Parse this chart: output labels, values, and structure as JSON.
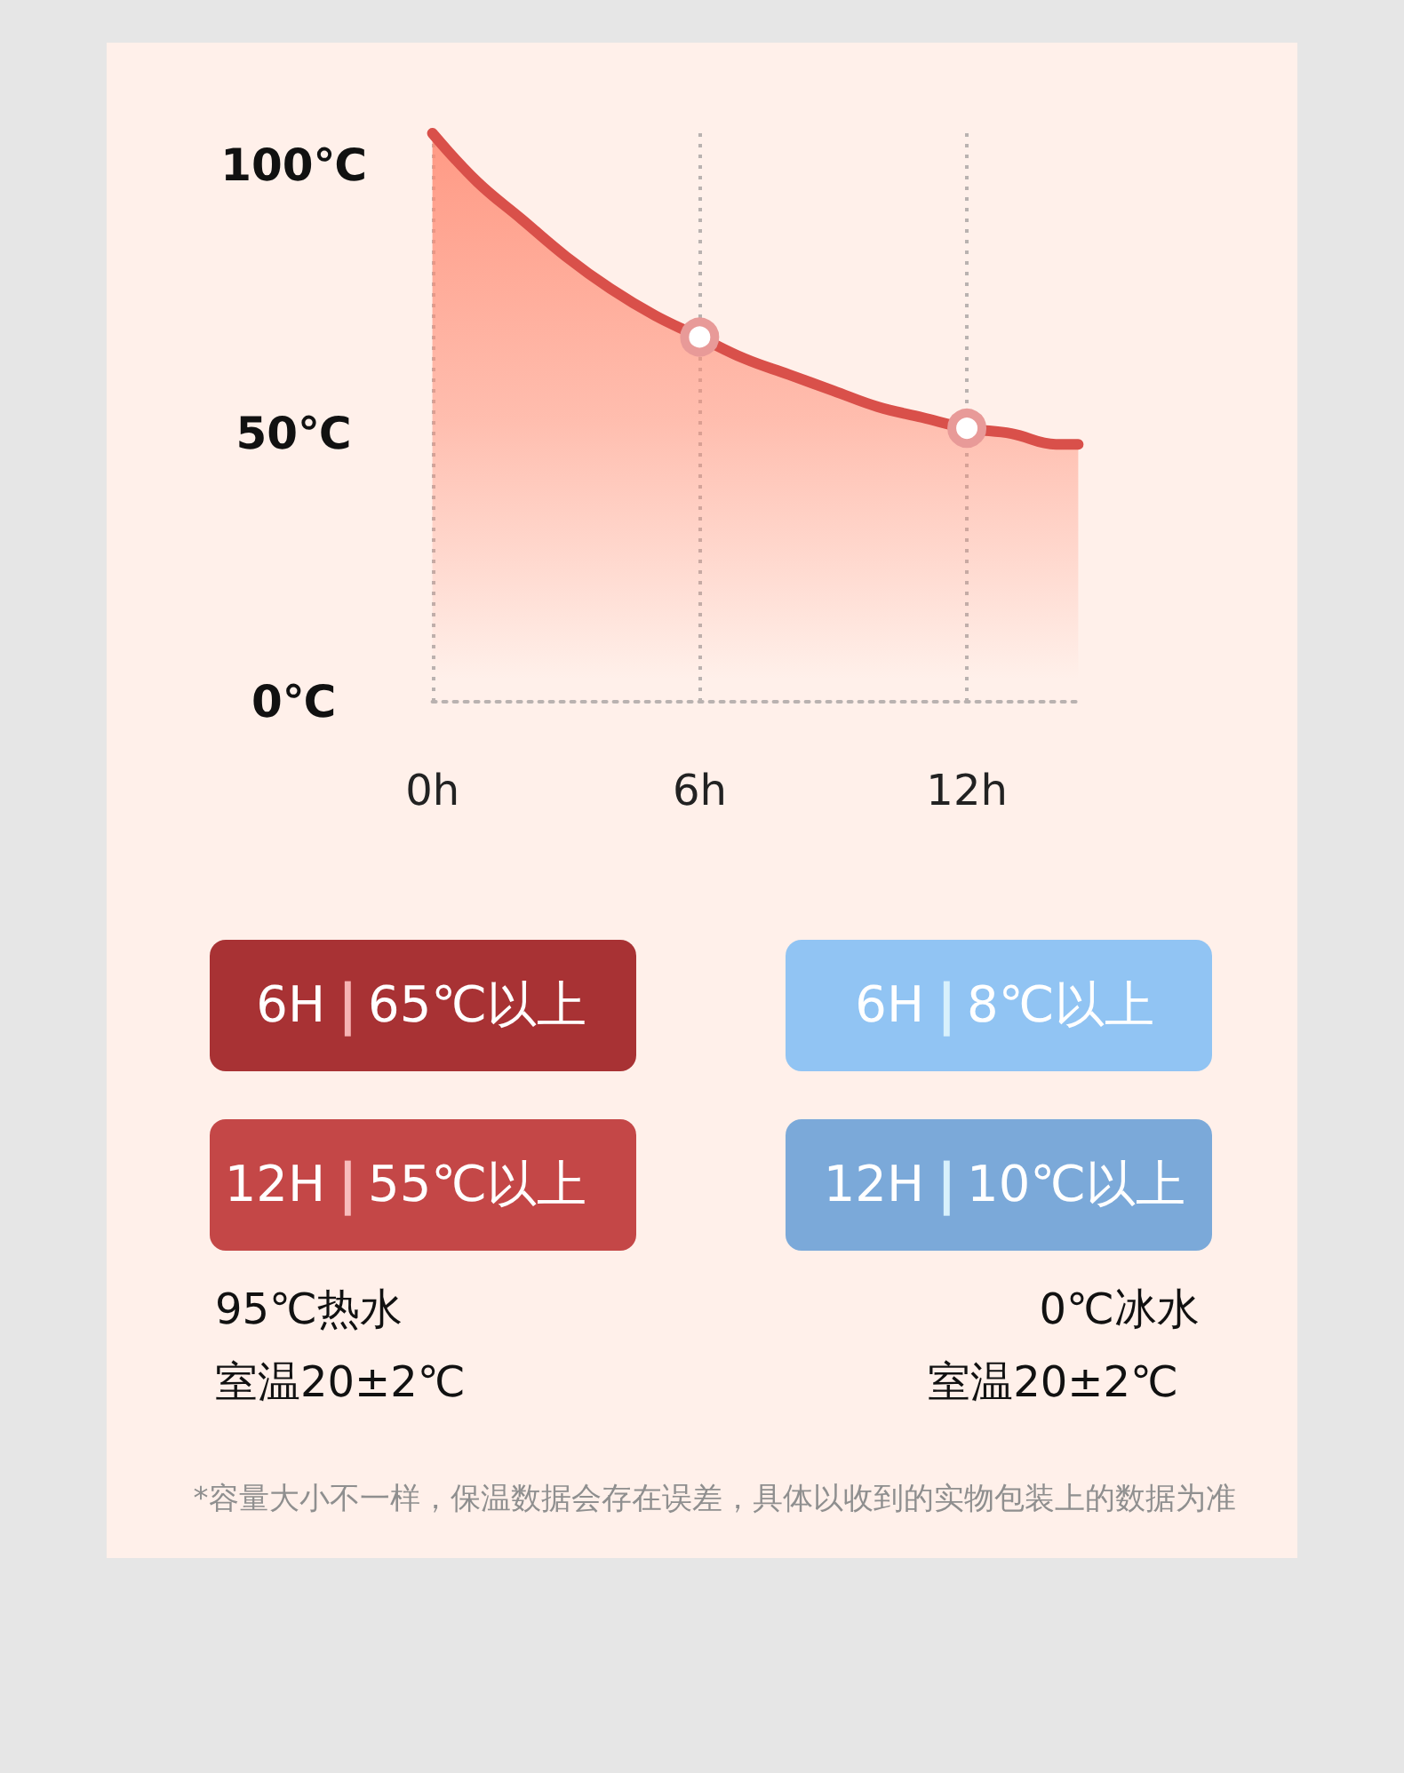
{
  "chart_data": [
    {
      "type": "area",
      "x": [
        0,
        1,
        2,
        3,
        4,
        5,
        6,
        7,
        8,
        9,
        10,
        11,
        12,
        13,
        14,
        14.5
      ],
      "series": [
        {
          "color": "#d9504a",
          "values": [
            106,
            97,
            90,
            83,
            77,
            72,
            68,
            64,
            61,
            58,
            55,
            53,
            51,
            50,
            48,
            48
          ]
        },
        {
          "type": "scatter",
          "x": [
            6,
            12
          ],
          "values": [
            68,
            51
          ],
          "color": "#e89a98",
          "marker": "circle"
        }
      ],
      "xlim": [
        0,
        14.5
      ],
      "ylim": [
        0,
        106
      ],
      "xticks": [
        {
          "value": 0,
          "label": "0h"
        },
        {
          "value": 6,
          "label": "6h"
        },
        {
          "value": 12,
          "label": "12h"
        }
      ],
      "yticks": [
        {
          "value": 0,
          "label": "0℃"
        },
        {
          "value": 50,
          "label": "50℃"
        },
        {
          "value": 100,
          "label": "100℃"
        }
      ],
      "grid": "x",
      "marker": "none",
      "line_style": "solid"
    },
    {
      "type": "other",
      "annotations": [
        "6H | 65℃以上",
        "6H | 8℃以上",
        "12H | 55℃以上",
        "12H | 10℃以上",
        "95℃热水",
        "0℃冰水",
        "室温20±2℃",
        "室温20±2℃",
        "*容量大小不一样，保温数据会存在误差，具体以收到的实物包装上的数据为准"
      ]
    }
  ]
}
